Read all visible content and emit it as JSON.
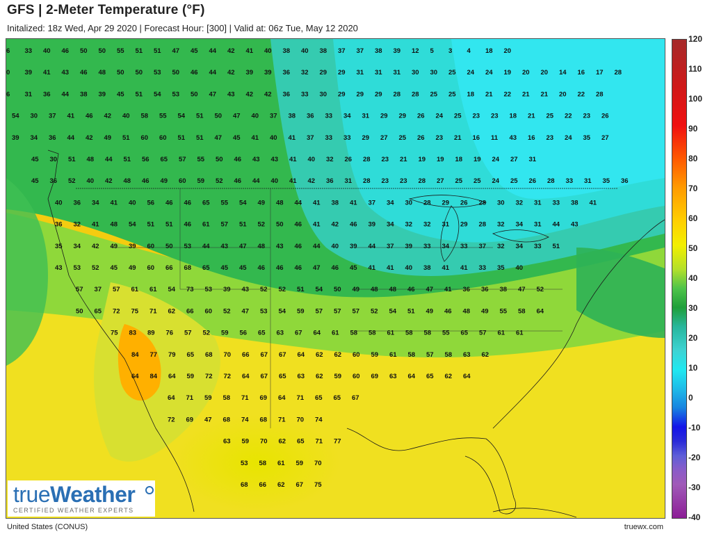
{
  "header": {
    "title": "GFS | 2-Meter Temperature (°F)",
    "subtitle": "Initalized: 18z Wed, Apr 29 2020 | Forecast Hour: [300] | Valid at: 06z Tue, May 12 2020"
  },
  "footer": {
    "region": "United States (CONUS)",
    "site": "truewx.com"
  },
  "logo": {
    "main_part1": "true",
    "main_part2": "Weather",
    "tagline": "CERTIFIED WEATHER EXPERTS"
  },
  "colorbar": {
    "labels": [
      "120",
      "110",
      "100",
      "90",
      "80",
      "70",
      "60",
      "50",
      "40",
      "30",
      "20",
      "10",
      "0",
      "-10",
      "-20",
      "-30",
      "-40"
    ]
  },
  "colors": {
    "hot": "#ffd000",
    "warm": "#f2ef00",
    "mild": "#2fb54a",
    "cool": "#3ed8cf",
    "cold": "#20e8f0",
    "logo_blue": "#2a6fb4"
  },
  "temperature_rows": [
    [
      "6",
      "33",
      "40",
      "46",
      "50",
      "50",
      "55",
      "51",
      "51",
      "47",
      "45",
      "44",
      "42",
      "41",
      "40",
      "38",
      "40",
      "38",
      "37",
      "37",
      "38",
      "39",
      "12",
      "5",
      "3",
      "4",
      "18",
      "20"
    ],
    [
      "0",
      "39",
      "41",
      "43",
      "46",
      "48",
      "50",
      "50",
      "53",
      "50",
      "46",
      "44",
      "42",
      "39",
      "39",
      "36",
      "32",
      "29",
      "29",
      "31",
      "31",
      "31",
      "30",
      "30",
      "25",
      "24",
      "24",
      "19",
      "20",
      "20",
      "14",
      "16",
      "17",
      "28"
    ],
    [
      "6",
      "31",
      "36",
      "44",
      "38",
      "39",
      "45",
      "51",
      "54",
      "53",
      "50",
      "47",
      "43",
      "42",
      "42",
      "36",
      "33",
      "30",
      "29",
      "29",
      "29",
      "28",
      "28",
      "25",
      "25",
      "18",
      "21",
      "22",
      "21",
      "21",
      "20",
      "22",
      "28"
    ],
    [
      "54",
      "30",
      "37",
      "41",
      "46",
      "42",
      "40",
      "58",
      "55",
      "54",
      "51",
      "50",
      "47",
      "40",
      "37",
      "38",
      "36",
      "33",
      "34",
      "31",
      "29",
      "29",
      "26",
      "24",
      "25",
      "23",
      "23",
      "18",
      "21",
      "25",
      "22",
      "23",
      "26"
    ],
    [
      "39",
      "34",
      "36",
      "44",
      "42",
      "49",
      "51",
      "60",
      "60",
      "51",
      "51",
      "47",
      "45",
      "41",
      "40",
      "41",
      "37",
      "33",
      "33",
      "29",
      "27",
      "25",
      "26",
      "23",
      "21",
      "16",
      "11",
      "43",
      "16",
      "23",
      "24",
      "35",
      "27"
    ],
    [
      "45",
      "30",
      "51",
      "48",
      "44",
      "51",
      "56",
      "65",
      "57",
      "55",
      "50",
      "46",
      "43",
      "43",
      "41",
      "40",
      "32",
      "26",
      "28",
      "23",
      "21",
      "19",
      "19",
      "18",
      "19",
      "24",
      "27",
      "31"
    ],
    [
      "45",
      "36",
      "52",
      "40",
      "42",
      "48",
      "46",
      "49",
      "60",
      "59",
      "52",
      "46",
      "44",
      "40",
      "41",
      "42",
      "36",
      "31",
      "28",
      "23",
      "23",
      "28",
      "27",
      "25",
      "25",
      "24",
      "25",
      "26",
      "28",
      "33",
      "31",
      "35",
      "36"
    ],
    [
      "40",
      "36",
      "34",
      "41",
      "40",
      "56",
      "46",
      "46",
      "65",
      "55",
      "54",
      "49",
      "48",
      "44",
      "41",
      "38",
      "41",
      "37",
      "34",
      "30",
      "28",
      "29",
      "26",
      "28",
      "30",
      "32",
      "31",
      "33",
      "38",
      "41"
    ],
    [
      "36",
      "32",
      "41",
      "48",
      "54",
      "51",
      "51",
      "46",
      "61",
      "57",
      "51",
      "52",
      "50",
      "46",
      "41",
      "42",
      "46",
      "39",
      "34",
      "32",
      "32",
      "31",
      "29",
      "28",
      "32",
      "34",
      "31",
      "44",
      "43"
    ],
    [
      "35",
      "34",
      "42",
      "49",
      "39",
      "60",
      "50",
      "53",
      "44",
      "43",
      "47",
      "48",
      "43",
      "46",
      "44",
      "40",
      "39",
      "44",
      "37",
      "39",
      "33",
      "34",
      "33",
      "37",
      "32",
      "34",
      "33",
      "51"
    ],
    [
      "43",
      "53",
      "52",
      "45",
      "49",
      "60",
      "66",
      "68",
      "65",
      "45",
      "45",
      "46",
      "46",
      "46",
      "47",
      "46",
      "45",
      "41",
      "41",
      "40",
      "38",
      "41",
      "41",
      "33",
      "35",
      "40"
    ],
    [
      "57",
      "37",
      "57",
      "61",
      "61",
      "54",
      "73",
      "53",
      "39",
      "43",
      "52",
      "52",
      "51",
      "54",
      "50",
      "49",
      "48",
      "48",
      "46",
      "47",
      "41",
      "36",
      "36",
      "38",
      "47",
      "52"
    ],
    [
      "50",
      "65",
      "72",
      "75",
      "71",
      "62",
      "66",
      "60",
      "52",
      "47",
      "53",
      "54",
      "59",
      "57",
      "57",
      "57",
      "52",
      "54",
      "51",
      "49",
      "46",
      "48",
      "49",
      "55",
      "58",
      "64"
    ],
    [
      "75",
      "83",
      "89",
      "76",
      "57",
      "52",
      "59",
      "56",
      "65",
      "63",
      "67",
      "64",
      "61",
      "58",
      "58",
      "61",
      "58",
      "58",
      "55",
      "65",
      "57",
      "61",
      "61"
    ],
    [
      "84",
      "77",
      "79",
      "65",
      "68",
      "70",
      "66",
      "67",
      "67",
      "64",
      "62",
      "62",
      "60",
      "59",
      "61",
      "58",
      "57",
      "58",
      "63",
      "62"
    ],
    [
      "64",
      "84",
      "64",
      "59",
      "72",
      "72",
      "64",
      "67",
      "65",
      "63",
      "62",
      "59",
      "60",
      "69",
      "63",
      "64",
      "65",
      "62",
      "64"
    ],
    [
      "64",
      "71",
      "59",
      "58",
      "71",
      "69",
      "64",
      "71",
      "65",
      "65",
      "67"
    ],
    [
      "72",
      "69",
      "47",
      "68",
      "74",
      "68",
      "71",
      "70",
      "74"
    ],
    [
      "63",
      "59",
      "70",
      "62",
      "65",
      "71",
      "77"
    ],
    [
      "53",
      "58",
      "61",
      "59",
      "70"
    ],
    [
      "68",
      "66",
      "62",
      "67",
      "75"
    ]
  ]
}
